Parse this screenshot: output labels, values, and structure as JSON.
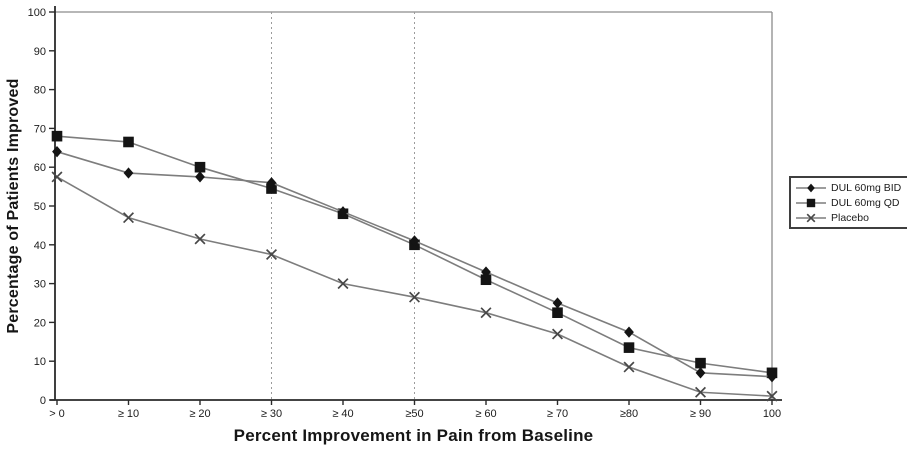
{
  "chart_data": {
    "type": "line",
    "title": "",
    "xlabel": "Percent Improvement in Pain from Baseline",
    "ylabel": "Percentage of Patients Improved",
    "categories": [
      "> 0",
      "≥ 10",
      "≥ 20",
      "≥ 30",
      "≥ 40",
      "≥50",
      "≥ 60",
      "≥ 70",
      "≥80",
      "≥ 90",
      "100"
    ],
    "yticks": [
      0,
      10,
      20,
      30,
      40,
      50,
      60,
      70,
      80,
      90,
      100
    ],
    "ylim": [
      0,
      100
    ],
    "grid": false,
    "reference_lines_at_categories": [
      "≥ 30",
      "≥50"
    ],
    "legend_position": "outside-right",
    "series": [
      {
        "name": "DUL 60mg BID",
        "marker": "diamond",
        "values": [
          64,
          58.5,
          57.5,
          56,
          48.5,
          41,
          33,
          25,
          17.5,
          7,
          6
        ]
      },
      {
        "name": "DUL 60mg QD",
        "marker": "square",
        "values": [
          68,
          66.5,
          60,
          54.5,
          48,
          40,
          31,
          22.5,
          13.5,
          9.5,
          7
        ]
      },
      {
        "name": "Placebo",
        "marker": "x",
        "values": [
          57.5,
          47,
          41.5,
          37.5,
          30,
          26.5,
          22.5,
          17,
          8.5,
          2,
          1
        ]
      }
    ],
    "colors": {
      "series_line": "#7d7d7d",
      "marker_fill": "#141414",
      "x_marker_stroke": "#474747",
      "reference_line": "#9b9b9b",
      "axis": "#2a2a2a",
      "plot_border": "#8c8c8c",
      "text": "#1c1c1c"
    }
  }
}
